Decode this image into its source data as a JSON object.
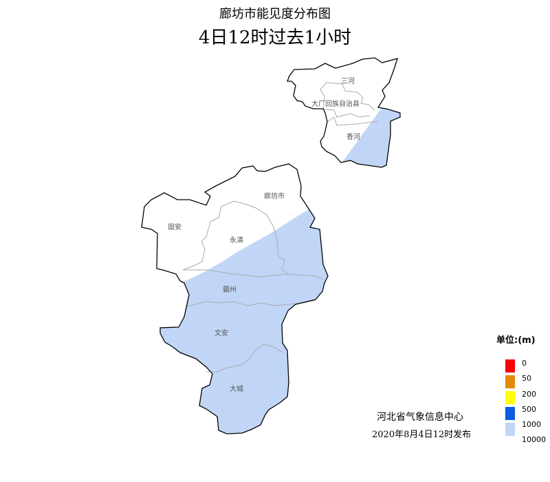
{
  "header": {
    "title": "廊坊市能见度分布图",
    "subtitle": "4日12时过去1小时"
  },
  "map": {
    "counties": {
      "sanhe": "三河",
      "dachang": "大厂回族自治县",
      "xianghe": "香河",
      "langfang": "廊坊市",
      "guan": "固安",
      "yongqing": "永清",
      "bazhou": "霸州",
      "wenan": "文安",
      "dacheng": "大城"
    },
    "colors": {
      "boundary": "#000000",
      "internal": "#aaaaaa",
      "fill_1000_10000": "#c1d6f7",
      "background": "#ffffff"
    }
  },
  "legend": {
    "title": "单位:(m)",
    "items": [
      {
        "value": "0",
        "color": "#ff0000"
      },
      {
        "value": "50",
        "color": "#e38a0a"
      },
      {
        "value": "200",
        "color": "#ffff00"
      },
      {
        "value": "500",
        "color": "#0a5ce0"
      },
      {
        "value": "1000",
        "color": "#c1d6f7"
      }
    ],
    "last_value": "10000"
  },
  "footer": {
    "issuer": "河北省气象信息中心",
    "issued_time": "2020年8月4日12时发布"
  }
}
